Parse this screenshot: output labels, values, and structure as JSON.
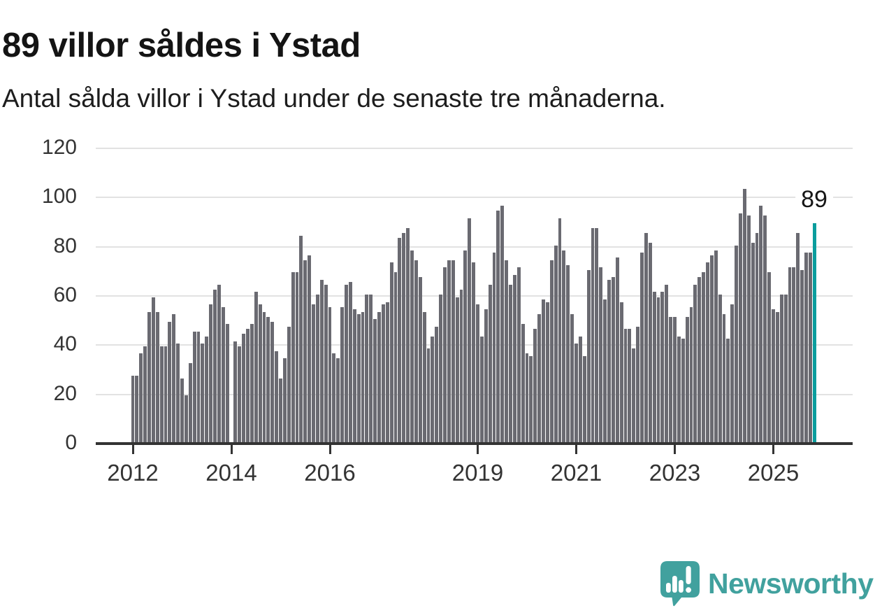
{
  "header": {
    "title": "89 villor såldes i Ystad",
    "subtitle": "Antal sålda villor i Ystad under de senaste tre månaderna."
  },
  "chart_data": {
    "type": "bar",
    "title": "89 villor såldes i Ystad",
    "subtitle": "Antal sålda villor i Ystad under de senaste tre månaderna.",
    "x_start": "2012 (monthly bars, rolling three-month sales)",
    "values": [
      27,
      27,
      36,
      39,
      53,
      59,
      53,
      39,
      39,
      49,
      52,
      40,
      26,
      19,
      32,
      45,
      45,
      40,
      43,
      56,
      62,
      64,
      55,
      48,
      0,
      41,
      39,
      44,
      46,
      48,
      61,
      56,
      53,
      51,
      49,
      37,
      26,
      34,
      47,
      69,
      69,
      84,
      74,
      76,
      56,
      60,
      66,
      64,
      55,
      36,
      34,
      55,
      64,
      65,
      54,
      52,
      53,
      60,
      60,
      50,
      53,
      56,
      57,
      73,
      69,
      83,
      85,
      87,
      78,
      74,
      67,
      53,
      38,
      43,
      47,
      60,
      71,
      74,
      74,
      59,
      62,
      78,
      91,
      73,
      56,
      43,
      54,
      64,
      77,
      94,
      96,
      74,
      64,
      68,
      71,
      48,
      36,
      35,
      46,
      52,
      58,
      57,
      74,
      80,
      91,
      78,
      72,
      52,
      40,
      43,
      35,
      70,
      87,
      87,
      71,
      58,
      66,
      67,
      75,
      57,
      46,
      46,
      38,
      47,
      77,
      85,
      81,
      61,
      59,
      61,
      64,
      51,
      51,
      43,
      42,
      51,
      55,
      64,
      67,
      69,
      73,
      76,
      78,
      60,
      52,
      42,
      56,
      80,
      93,
      103,
      92,
      81,
      85,
      96,
      92,
      69,
      54,
      53,
      60,
      60,
      71,
      71,
      85,
      70,
      77,
      77,
      89
    ],
    "highlight_index": 166,
    "highlight_label": "89",
    "x_tick_labels": [
      "2012",
      "2014",
      "2016",
      "2019",
      "2021",
      "2023",
      "2025"
    ],
    "x_tick_indices": [
      0,
      24,
      48,
      84,
      108,
      132,
      156
    ],
    "y_ticks": [
      0,
      20,
      40,
      60,
      80,
      100,
      120
    ],
    "ylim": [
      0,
      120
    ],
    "grid": "horizontal",
    "legend": "none"
  },
  "branding": {
    "name": "Newsworthy",
    "logo_icon": "bar-chart-speech-bubble"
  },
  "colors": {
    "bar": "#6a6a71",
    "highlight": "#0b9d9d",
    "grid": "#e2e2e2",
    "axis": "#333333",
    "brand": "#41a19e",
    "background": "#ffffff",
    "text": "#161616"
  }
}
